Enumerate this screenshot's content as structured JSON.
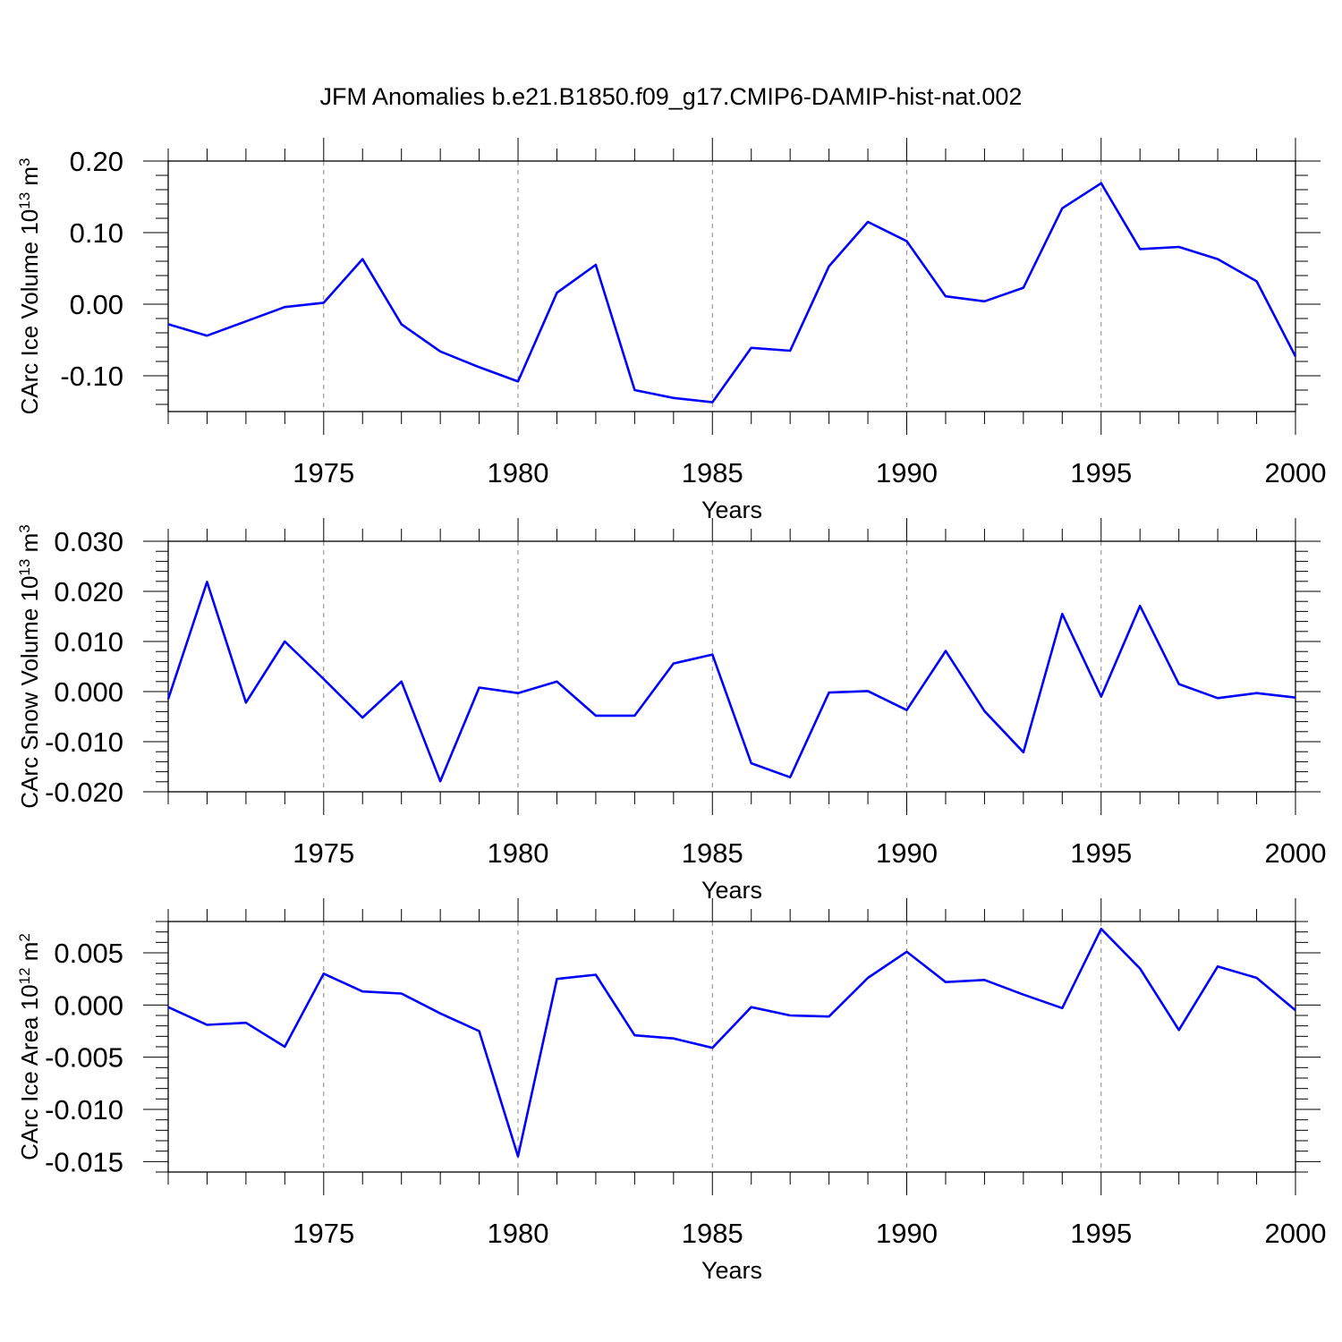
{
  "chart_data": [
    {
      "type": "line",
      "panel": "ice-volume",
      "title": "JFM Anomalies b.e21.B1850.f09_g17.CMIP6-DAMIP-hist-nat.002",
      "ylabel_main": "CArc Ice Volume 10",
      "ylabel_exp": "13",
      "ylabel_tail": " m",
      "ylabel_unit_exp": "3",
      "xlabel": "Years",
      "xlim": [
        1971,
        2000
      ],
      "ylim": [
        -0.15,
        0.2
      ],
      "yticks": [
        -0.1,
        0.0,
        0.1,
        0.2
      ],
      "ytick_labels": [
        "-0.10",
        "0.00",
        "0.10",
        "0.20"
      ],
      "xticks": [
        1975,
        1980,
        1985,
        1990,
        1995,
        2000
      ],
      "xtick_labels": [
        "1975",
        "1980",
        "1985",
        "1990",
        "1995",
        "2000"
      ],
      "x": [
        1971,
        1972,
        1973,
        1974,
        1975,
        1976,
        1977,
        1978,
        1979,
        1980,
        1981,
        1982,
        1983,
        1984,
        1985,
        1986,
        1987,
        1988,
        1989,
        1990,
        1991,
        1992,
        1993,
        1994,
        1995,
        1996,
        1997,
        1998,
        1999,
        2000
      ],
      "series": [
        {
          "name": "CArc Ice Volume",
          "color": "#0000ff",
          "values": [
            -0.028,
            -0.044,
            -0.024,
            -0.004,
            0.002,
            0.063,
            -0.028,
            -0.066,
            -0.088,
            -0.108,
            0.016,
            0.055,
            -0.12,
            -0.131,
            -0.137,
            -0.061,
            -0.065,
            0.053,
            0.115,
            0.088,
            0.011,
            0.004,
            0.023,
            0.134,
            0.169,
            0.077,
            0.08,
            0.063,
            0.032,
            -0.073
          ]
        }
      ]
    },
    {
      "type": "line",
      "panel": "snow-volume",
      "ylabel_main": "CArc Snow Volume 10",
      "ylabel_exp": "13",
      "ylabel_tail": " m",
      "ylabel_unit_exp": "3",
      "xlabel": "Years",
      "xlim": [
        1971,
        2000
      ],
      "ylim": [
        -0.02,
        0.03
      ],
      "yticks": [
        -0.02,
        -0.01,
        0.0,
        0.01,
        0.02,
        0.03
      ],
      "ytick_labels": [
        "-0.020",
        "-0.010",
        "0.000",
        "0.010",
        "0.020",
        "0.030"
      ],
      "xticks": [
        1975,
        1980,
        1985,
        1990,
        1995,
        2000
      ],
      "xtick_labels": [
        "1975",
        "1980",
        "1985",
        "1990",
        "1995",
        "2000"
      ],
      "x": [
        1971,
        1972,
        1973,
        1974,
        1975,
        1976,
        1977,
        1978,
        1979,
        1980,
        1981,
        1982,
        1983,
        1984,
        1985,
        1986,
        1987,
        1988,
        1989,
        1990,
        1991,
        1992,
        1993,
        1994,
        1995,
        1996,
        1997,
        1998,
        1999,
        2000
      ],
      "series": [
        {
          "name": "CArc Snow Volume",
          "color": "#0000ff",
          "values": [
            -0.0015,
            0.0219,
            -0.0022,
            0.01,
            0.0025,
            -0.0052,
            0.002,
            -0.0179,
            0.0008,
            -0.0003,
            0.002,
            -0.0048,
            -0.0048,
            0.0056,
            0.0074,
            -0.0143,
            -0.0171,
            -0.0002,
            0.0001,
            -0.0037,
            0.0081,
            -0.0039,
            -0.0121,
            0.0155,
            -0.001,
            0.0171,
            0.0015,
            -0.0013,
            -0.0003,
            -0.0012
          ]
        }
      ]
    },
    {
      "type": "line",
      "panel": "ice-area",
      "ylabel_main": "CArc Ice Area 10",
      "ylabel_exp": "12",
      "ylabel_tail": " m",
      "ylabel_unit_exp": "2",
      "xlabel": "Years",
      "xlim": [
        1971,
        2000
      ],
      "ylim": [
        -0.016,
        0.008
      ],
      "yticks": [
        -0.015,
        -0.01,
        -0.005,
        0.0,
        0.005
      ],
      "ytick_labels": [
        "-0.015",
        "-0.010",
        "-0.005",
        "0.000",
        "0.005"
      ],
      "xticks": [
        1975,
        1980,
        1985,
        1990,
        1995,
        2000
      ],
      "xtick_labels": [
        "1975",
        "1980",
        "1985",
        "1990",
        "1995",
        "2000"
      ],
      "x": [
        1971,
        1972,
        1973,
        1974,
        1975,
        1976,
        1977,
        1978,
        1979,
        1980,
        1981,
        1982,
        1983,
        1984,
        1985,
        1986,
        1987,
        1988,
        1989,
        1990,
        1991,
        1992,
        1993,
        1994,
        1995,
        1996,
        1997,
        1998,
        1999,
        2000
      ],
      "series": [
        {
          "name": "CArc Ice Area",
          "color": "#0000ff",
          "values": [
            -0.0002,
            -0.0019,
            -0.0017,
            -0.004,
            0.003,
            0.0013,
            0.0011,
            -0.0008,
            -0.0025,
            -0.0145,
            0.0025,
            0.0029,
            -0.0029,
            -0.0032,
            -0.0041,
            -0.0002,
            -0.001,
            -0.0011,
            0.0026,
            0.0051,
            0.0022,
            0.0024,
            0.001,
            -0.0003,
            0.0073,
            0.0035,
            -0.0024,
            0.0037,
            0.0026,
            -0.0005
          ]
        }
      ]
    }
  ]
}
